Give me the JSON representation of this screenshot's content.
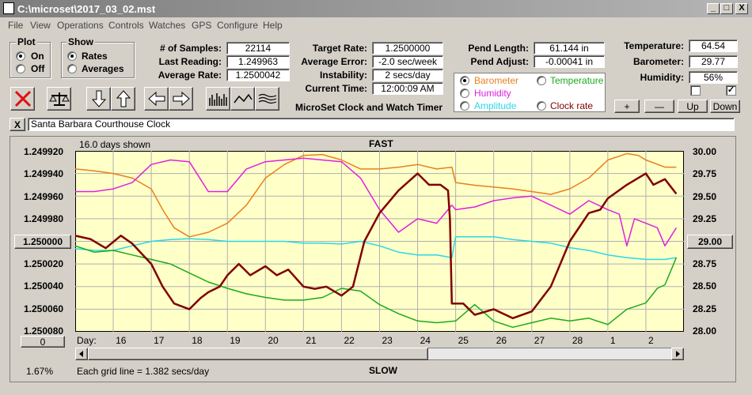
{
  "window": {
    "title": "C:\\microset\\2017_03_02.mst",
    "min": "_",
    "max": "□",
    "close": "X"
  },
  "menu": [
    "File",
    "View",
    "Operations",
    "Controls",
    "Watches",
    "GPS",
    "Configure",
    "Help"
  ],
  "plot": {
    "title": "Plot",
    "on": "On",
    "off": "Off"
  },
  "show": {
    "title": "Show",
    "rates": "Rates",
    "averages": "Averages"
  },
  "stats": {
    "samples_label": "# of Samples:",
    "samples": "22114",
    "last_label": "Last Reading:",
    "last": "1.249963",
    "avg_label": "Average Rate:",
    "avg": "1.2500042"
  },
  "target": {
    "rate_label": "Target Rate:",
    "rate": "1.2500000",
    "err_label": "Average Error:",
    "err": "-2.0 sec/week",
    "inst_label": "Instability:",
    "inst": "2 secs/day",
    "time_label": "Current Time:",
    "time": "12:00:09 AM",
    "app_name": "MicroSet Clock and Watch Timer"
  },
  "pend": {
    "len_label": "Pend Length:",
    "len": "61.144 in",
    "adj_label": "Pend Adjust:",
    "adj": "-0.00041 in"
  },
  "sensor_select": {
    "barometer": "Barometer",
    "temperature": "Temperature",
    "humidity": "Humidity",
    "amplitude": "Amplitude",
    "clock_rate": "Clock rate",
    "colors": {
      "barometer": "#e8801c",
      "temperature": "#1caa1c",
      "humidity": "#e020e0",
      "amplitude": "#28d8e8",
      "clock_rate": "#800000"
    }
  },
  "env": {
    "temp_label": "Temperature:",
    "temp": "64.54",
    "baro_label": "Barometer:",
    "baro": "29.77",
    "hum_label": "Humidity:",
    "hum": "56%",
    "chk_right": "✓",
    "plus": "+",
    "minus": "—",
    "up": "Up",
    "down": "Down"
  },
  "clock_name": {
    "close": "X",
    "value": "Santa Barbara Courthouse Clock"
  },
  "chart_data": {
    "type": "line",
    "title": "FAST",
    "bottom_title": "SLOW",
    "days_shown": "16.0 days shown",
    "grid_note": "Each grid line = 1.382 secs/day",
    "left_ticks": [
      "1.249920",
      "1.249940",
      "1.249960",
      "1.249980",
      "1.250000",
      "1.250020",
      "1.250040",
      "1.250060",
      "1.250080"
    ],
    "right_ticks": [
      "30.00",
      "29.75",
      "29.50",
      "29.25",
      "29.00",
      "28.75",
      "28.50",
      "28.25",
      "28.00"
    ],
    "left_selected": "1.250000",
    "right_selected": "29.00",
    "left_bottom_btn": "0",
    "x_prefix": "Day:",
    "x_labels": [
      "16",
      "17",
      "18",
      "19",
      "20",
      "21",
      "22",
      "23",
      "24",
      "25",
      "26",
      "27",
      "28",
      "1",
      "2"
    ],
    "x_range": [
      15.0,
      31.0
    ],
    "y_left_range": [
      1.24992,
      1.25008
    ],
    "pct": "1.67%",
    "series": [
      {
        "name": "Barometer",
        "color": "#e8801c",
        "x": [
          15.0,
          15.5,
          16.0,
          16.5,
          17.0,
          17.3,
          17.6,
          18.0,
          18.5,
          19.0,
          19.5,
          20.0,
          20.5,
          21.0,
          21.5,
          22.0,
          22.5,
          23.0,
          23.5,
          24.0,
          24.5,
          24.9,
          25.0,
          25.5,
          26.0,
          26.5,
          27.0,
          27.5,
          28.0,
          28.5,
          29.0,
          29.5,
          29.8,
          30.0,
          30.5,
          30.8
        ],
        "y": [
          29.8,
          29.78,
          29.75,
          29.7,
          29.58,
          29.35,
          29.15,
          29.05,
          29.1,
          29.2,
          29.4,
          29.7,
          29.85,
          29.95,
          29.96,
          29.9,
          29.8,
          29.8,
          29.82,
          29.85,
          29.8,
          29.82,
          29.65,
          29.62,
          29.6,
          29.58,
          29.55,
          29.52,
          29.58,
          29.7,
          29.9,
          29.97,
          29.95,
          29.9,
          29.82,
          29.82
        ]
      },
      {
        "name": "Humidity",
        "color": "#e020e0",
        "x": [
          15.0,
          15.5,
          16.0,
          16.5,
          17.0,
          17.5,
          18.0,
          18.5,
          19.0,
          19.5,
          20.0,
          20.5,
          21.0,
          21.5,
          22.0,
          22.5,
          23.0,
          23.5,
          24.0,
          24.5,
          24.9,
          25.0,
          25.5,
          26.0,
          26.5,
          27.0,
          27.5,
          28.0,
          28.5,
          29.0,
          29.3,
          29.5,
          29.7,
          30.0,
          30.3,
          30.5,
          30.8
        ],
        "y": [
          29.55,
          29.55,
          29.58,
          29.65,
          29.85,
          29.9,
          29.88,
          29.55,
          29.55,
          29.8,
          29.88,
          29.9,
          29.92,
          29.9,
          29.88,
          29.7,
          29.35,
          29.1,
          29.25,
          29.2,
          29.4,
          29.35,
          29.38,
          29.45,
          29.48,
          29.5,
          29.4,
          29.3,
          29.45,
          29.35,
          29.3,
          28.95,
          29.25,
          29.2,
          29.15,
          28.95,
          29.15
        ]
      },
      {
        "name": "Amplitude",
        "color": "#28d8e8",
        "x": [
          15.0,
          15.5,
          16.0,
          16.5,
          17.0,
          17.5,
          18.0,
          18.5,
          19.0,
          19.5,
          20.0,
          20.5,
          21.0,
          21.5,
          22.0,
          22.5,
          23.0,
          23.5,
          24.0,
          24.5,
          24.9,
          25.0,
          25.5,
          26.0,
          26.5,
          27.0,
          27.5,
          28.0,
          28.5,
          29.0,
          29.5,
          30.0,
          30.5,
          30.8
        ],
        "y": [
          28.92,
          28.9,
          28.9,
          28.95,
          29.0,
          29.02,
          29.03,
          29.02,
          29.0,
          29.0,
          29.0,
          29.0,
          28.98,
          28.98,
          28.97,
          29.0,
          28.95,
          28.88,
          28.85,
          28.85,
          28.82,
          29.05,
          29.05,
          29.05,
          29.02,
          29.0,
          28.98,
          28.93,
          28.9,
          28.85,
          28.82,
          28.8,
          28.8,
          28.82
        ]
      },
      {
        "name": "Temperature",
        "color": "#1caa1c",
        "x": [
          15.0,
          15.5,
          16.0,
          16.5,
          17.0,
          17.5,
          18.0,
          18.5,
          19.0,
          19.5,
          20.0,
          20.5,
          21.0,
          21.5,
          22.0,
          22.5,
          23.0,
          23.5,
          24.0,
          24.5,
          25.0,
          25.5,
          26.0,
          26.5,
          27.0,
          27.5,
          28.0,
          28.5,
          29.0,
          29.5,
          30.0,
          30.3,
          30.5,
          30.8
        ],
        "y": [
          28.95,
          28.88,
          28.9,
          28.85,
          28.8,
          28.75,
          28.65,
          28.55,
          28.48,
          28.42,
          28.38,
          28.35,
          28.35,
          28.38,
          28.48,
          28.45,
          28.3,
          28.2,
          28.12,
          28.1,
          28.12,
          28.3,
          28.12,
          28.05,
          28.1,
          28.15,
          28.12,
          28.15,
          28.08,
          28.25,
          28.32,
          28.48,
          28.52,
          28.82
        ]
      },
      {
        "name": "Clock rate",
        "color": "#800000",
        "x": [
          15.0,
          15.4,
          15.8,
          16.2,
          16.5,
          17.0,
          17.3,
          17.6,
          18.0,
          18.3,
          18.5,
          18.8,
          19.0,
          19.3,
          19.6,
          20.0,
          20.3,
          20.6,
          21.0,
          21.3,
          21.6,
          22.0,
          22.3,
          22.6,
          23.0,
          23.5,
          24.0,
          24.3,
          24.6,
          24.8,
          24.85,
          24.9,
          25.2,
          25.5,
          26.0,
          26.5,
          27.0,
          27.5,
          28.0,
          28.3,
          28.5,
          28.8,
          29.0,
          29.5,
          30.0,
          30.2,
          30.5,
          30.8
        ],
        "y": [
          1.249995,
          1.249998,
          1.250006,
          1.249995,
          1.250002,
          1.25002,
          1.25004,
          1.250055,
          1.25006,
          1.25005,
          1.250045,
          1.25004,
          1.25003,
          1.25002,
          1.25003,
          1.250022,
          1.25003,
          1.250025,
          1.25004,
          1.250042,
          1.25004,
          1.250048,
          1.25004,
          1.25,
          1.249975,
          1.249955,
          1.24994,
          1.24995,
          1.24995,
          1.249955,
          1.24998,
          1.250055,
          1.250055,
          1.250065,
          1.25006,
          1.250068,
          1.250062,
          1.25004,
          1.25,
          1.249985,
          1.249975,
          1.249972,
          1.249962,
          1.24995,
          1.24994,
          1.24995,
          1.249945,
          1.249958
        ]
      }
    ]
  }
}
